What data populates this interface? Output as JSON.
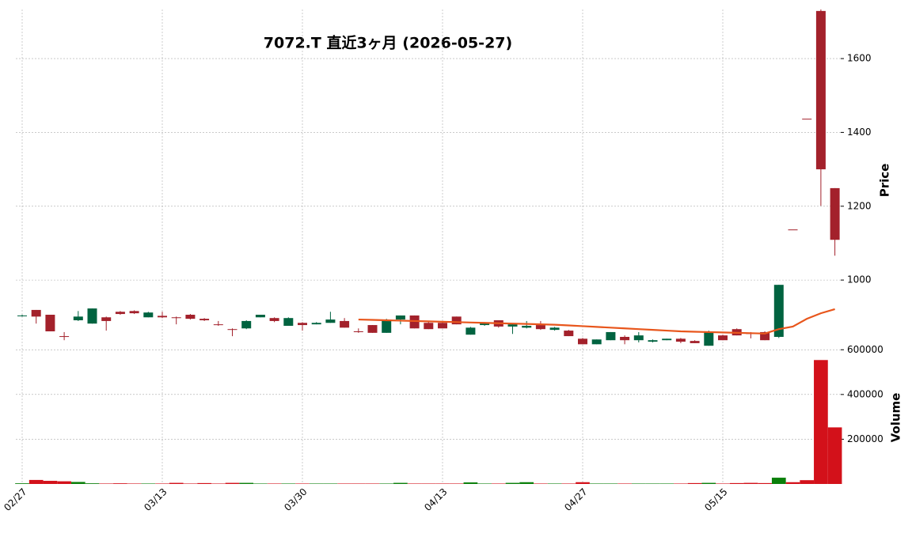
{
  "chart_data": {
    "type": "candlestick",
    "title": "7072.T  直近3ヶ月  (2026-05-27)",
    "ylabel": "Price",
    "volume_ylabel": "Volume",
    "categories": [
      "02/27",
      null,
      null,
      null,
      null,
      null,
      null,
      null,
      null,
      null,
      "03/13",
      null,
      null,
      null,
      null,
      null,
      null,
      null,
      null,
      null,
      "03/30",
      null,
      null,
      null,
      null,
      null,
      null,
      null,
      null,
      null,
      "04/13",
      null,
      null,
      null,
      null,
      null,
      null,
      null,
      null,
      null,
      "04/27",
      null,
      null,
      null,
      null,
      null,
      null,
      null,
      null,
      null,
      "05/15",
      null,
      null,
      null,
      null,
      null,
      null,
      null,
      null
    ],
    "open": [
      903,
      919,
      906,
      848,
      891,
      882,
      899,
      914,
      916,
      899,
      903,
      899,
      906,
      895,
      880,
      867,
      869,
      899,
      897,
      876,
      884,
      880,
      884,
      889,
      861,
      878,
      857,
      893,
      904,
      884,
      884,
      901,
      852,
      878,
      891,
      874,
      871,
      878,
      865,
      863,
      841,
      826,
      837,
      846,
      837,
      833,
      837,
      841,
      835,
      822,
      850,
      867,
      856,
      859,
      846,
      1137,
      1437,
      1729,
      1249
    ],
    "high": [
      906,
      919,
      906,
      859,
      916,
      923,
      901,
      916,
      918,
      914,
      914,
      901,
      908,
      897,
      889,
      869,
      891,
      906,
      899,
      899,
      886,
      886,
      914,
      897,
      869,
      878,
      895,
      904,
      904,
      886,
      886,
      901,
      873,
      886,
      891,
      882,
      889,
      889,
      873,
      865,
      843,
      839,
      859,
      850,
      859,
      839,
      841,
      843,
      837,
      863,
      852,
      869,
      859,
      861,
      987,
      1137,
      1437,
      1733,
      1249
    ],
    "low": [
      901,
      882,
      861,
      837,
      889,
      882,
      863,
      906,
      908,
      899,
      897,
      880,
      893,
      889,
      876,
      848,
      867,
      899,
      886,
      876,
      863,
      880,
      884,
      871,
      857,
      857,
      857,
      880,
      869,
      867,
      869,
      880,
      852,
      876,
      871,
      854,
      869,
      865,
      863,
      848,
      826,
      826,
      837,
      826,
      831,
      831,
      837,
      829,
      829,
      822,
      837,
      850,
      842,
      837,
      843,
      1137,
      1437,
      1201,
      1066
    ],
    "close": [
      904,
      901,
      861,
      847,
      901,
      923,
      889,
      908,
      910,
      912,
      899,
      897,
      895,
      891,
      878,
      865,
      889,
      906,
      889,
      897,
      878,
      884,
      893,
      871,
      860,
      857,
      893,
      904,
      869,
      867,
      869,
      880,
      871,
      884,
      874,
      880,
      876,
      867,
      871,
      848,
      826,
      839,
      859,
      837,
      850,
      837,
      841,
      833,
      829,
      861,
      837,
      850,
      855,
      837,
      987,
      1137,
      1437,
      1300,
      1109
    ],
    "volume": [
      3000,
      18000,
      14000,
      12000,
      9000,
      3000,
      2000,
      3000,
      2000,
      2000,
      2000,
      5000,
      2000,
      4000,
      2000,
      5000,
      5000,
      2000,
      2000,
      2000,
      2000,
      2000,
      2000,
      2000,
      2000,
      2000,
      2000,
      5000,
      2000,
      2000,
      2000,
      2000,
      7000,
      2000,
      2000,
      5000,
      8000,
      2000,
      2000,
      2000,
      8000,
      2000,
      2000,
      2000,
      2000,
      2000,
      2000,
      2000,
      4000,
      5000,
      2000,
      4000,
      5000,
      4000,
      28000,
      8000,
      17000,
      554000,
      253000
    ],
    "moving_average": {
      "color": "#e8561c",
      "values": [
        null,
        null,
        null,
        null,
        null,
        null,
        null,
        null,
        null,
        null,
        null,
        null,
        null,
        null,
        null,
        null,
        null,
        null,
        null,
        null,
        null,
        null,
        null,
        null,
        893,
        892,
        891,
        890,
        889,
        888,
        887,
        886,
        885,
        884,
        883,
        882,
        881,
        880,
        879,
        877,
        875,
        873,
        871,
        869,
        867,
        865,
        863,
        861,
        860,
        859,
        858,
        857,
        856,
        855,
        867,
        874,
        895,
        910,
        921
      ]
    },
    "up_color": "#006340",
    "down_color": "#a3212b",
    "volume_up_color": "#0a7f0a",
    "volume_down_color": "#d3111a",
    "ylim": [
      816,
      1733
    ],
    "yticks": [
      1000,
      1200,
      1400,
      1600
    ],
    "volume_ylim": [
      0,
      608000
    ],
    "volume_yticks": [
      200000,
      400000,
      600000
    ],
    "grid": true
  }
}
